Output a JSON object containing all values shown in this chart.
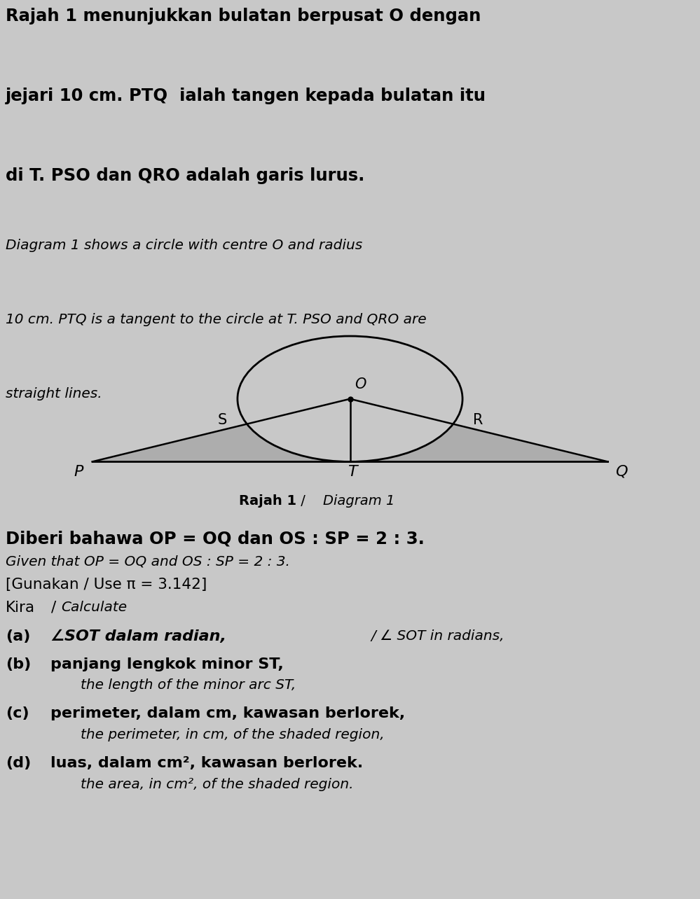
{
  "bg_color": "#c8c8c8",
  "top_text_bg": "#ffffff",
  "diagram_bg": "#c8c8c8",
  "title_text_1": "Rajah 1 menunjukkan bulatan berpusat O dengan",
  "title_text_2": "jejari 10 cm. PTQ  ialah tangen kepada bulatan itu",
  "title_text_3": "di T. PSO dan QRO adalah garis lurus.",
  "subtitle_text_1": "Diagram 1 shows a circle with centre O and radius",
  "subtitle_text_2": "10 cm. PTQ is a tangent to the circle at T. PSO and QRO are",
  "subtitle_text_3": "straight lines.",
  "given_text_bold": "Diberi bahawa OP = OQ dan OS : SP = 2 : 3.",
  "given_text_italic": "Given that OP = OQ and OS : SP = 2 : 3.",
  "use_pi": "[Gunakan / Use π = 3.142]",
  "circle_color": "#000000",
  "shaded_color": "#aaaaaa",
  "line_color": "#000000",
  "label_O": "O",
  "label_S": "S",
  "label_R": "R",
  "label_P": "P",
  "label_T": "T",
  "label_Q": "Q"
}
